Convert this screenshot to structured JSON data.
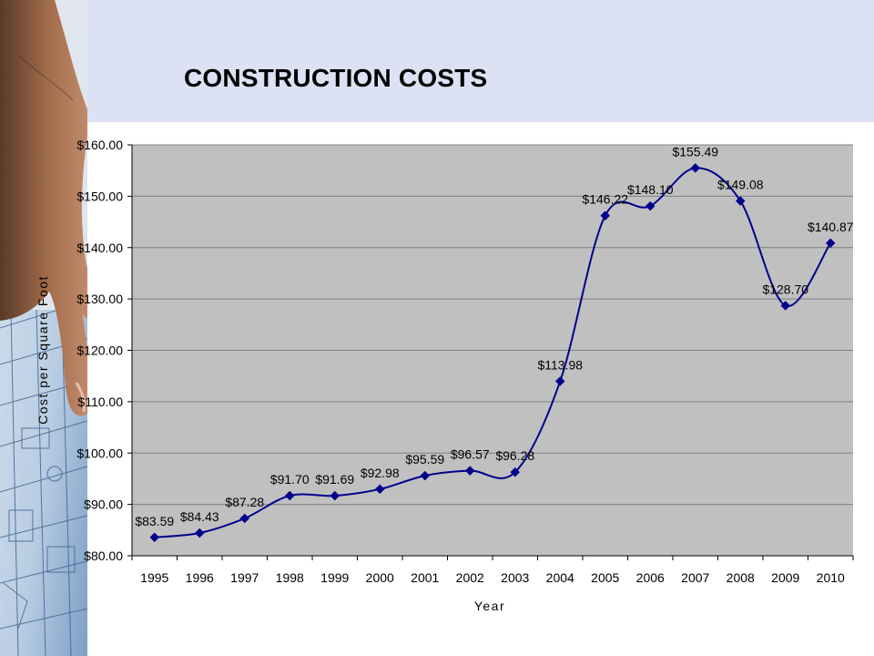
{
  "slide": {
    "title": "CONSTRUCTION COSTS"
  },
  "colors": {
    "header_band": "#dde1f4",
    "plot_area": "#c0c0c0",
    "series_line": "#00008b",
    "marker": "#00008b",
    "gridline": "#808080"
  },
  "chart_data": {
    "type": "line",
    "title": "",
    "xlabel": "Year",
    "ylabel": "Cost per Square Foot",
    "ylim": [
      80,
      160
    ],
    "y_tick_step": 10,
    "y_tick_labels": [
      "$80.00",
      "$90.00",
      "$100.00",
      "$110.00",
      "$120.00",
      "$130.00",
      "$140.00",
      "$150.00",
      "$160.00"
    ],
    "grid": "horizontal",
    "smoothed": true,
    "categories": [
      "1995",
      "1996",
      "1997",
      "1998",
      "1999",
      "2000",
      "2001",
      "2002",
      "2003",
      "2004",
      "2005",
      "2006",
      "2007",
      "2008",
      "2009",
      "2010"
    ],
    "series": [
      {
        "values": [
          83.59,
          84.43,
          87.28,
          91.7,
          91.69,
          92.98,
          95.59,
          96.57,
          96.28,
          113.98,
          146.22,
          148.1,
          155.49,
          149.08,
          128.7,
          140.87
        ],
        "data_labels": [
          "$83.59",
          "$84.43",
          "$87.28",
          "$91.70",
          "$91.69",
          "$92.98",
          "$95.59",
          "$96.57",
          "$96.28",
          "$113.98",
          "$146.22",
          "$148.10",
          "$155.49",
          "$149.08",
          "$128.70",
          "$140.87"
        ]
      }
    ]
  }
}
